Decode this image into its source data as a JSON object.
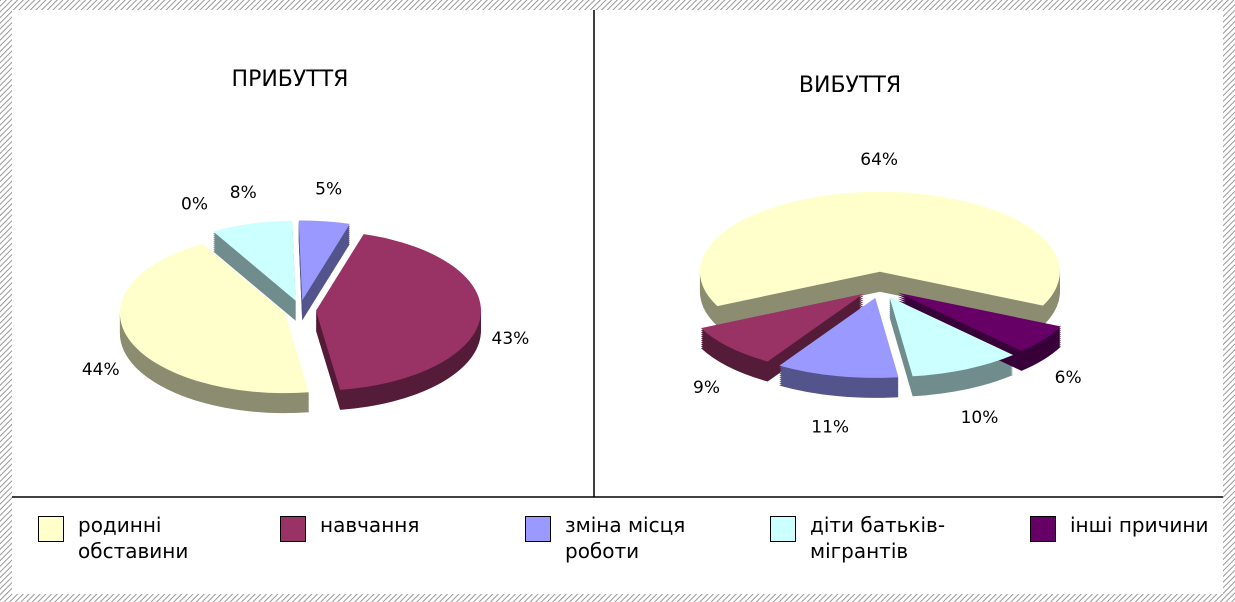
{
  "chart_data": [
    {
      "type": "pie",
      "title": "ПРИБУТТЯ",
      "categories": [
        "родинні обставини",
        "навчання",
        "зміна місця роботи",
        "діти батьків-мігрантів",
        "інші причини"
      ],
      "values": [
        44,
        43,
        5,
        8,
        0
      ],
      "value_labels": [
        "44%",
        "43%",
        "5%",
        "8%",
        "0%"
      ],
      "colors": [
        "#ffffcc",
        "#993366",
        "#9999ff",
        "#ccffff",
        "#660066"
      ]
    },
    {
      "type": "pie",
      "title": "ВИБУТТЯ",
      "categories": [
        "родинні обставини",
        "навчання",
        "зміна місця роботи",
        "діти батьків-мігрантів",
        "інші причини"
      ],
      "values": [
        64,
        9,
        11,
        10,
        6
      ],
      "value_labels": [
        "64%",
        "9%",
        "11%",
        "10%",
        "6%"
      ],
      "colors": [
        "#ffffcc",
        "#993366",
        "#9999ff",
        "#ccffff",
        "#660066"
      ]
    }
  ]
}
